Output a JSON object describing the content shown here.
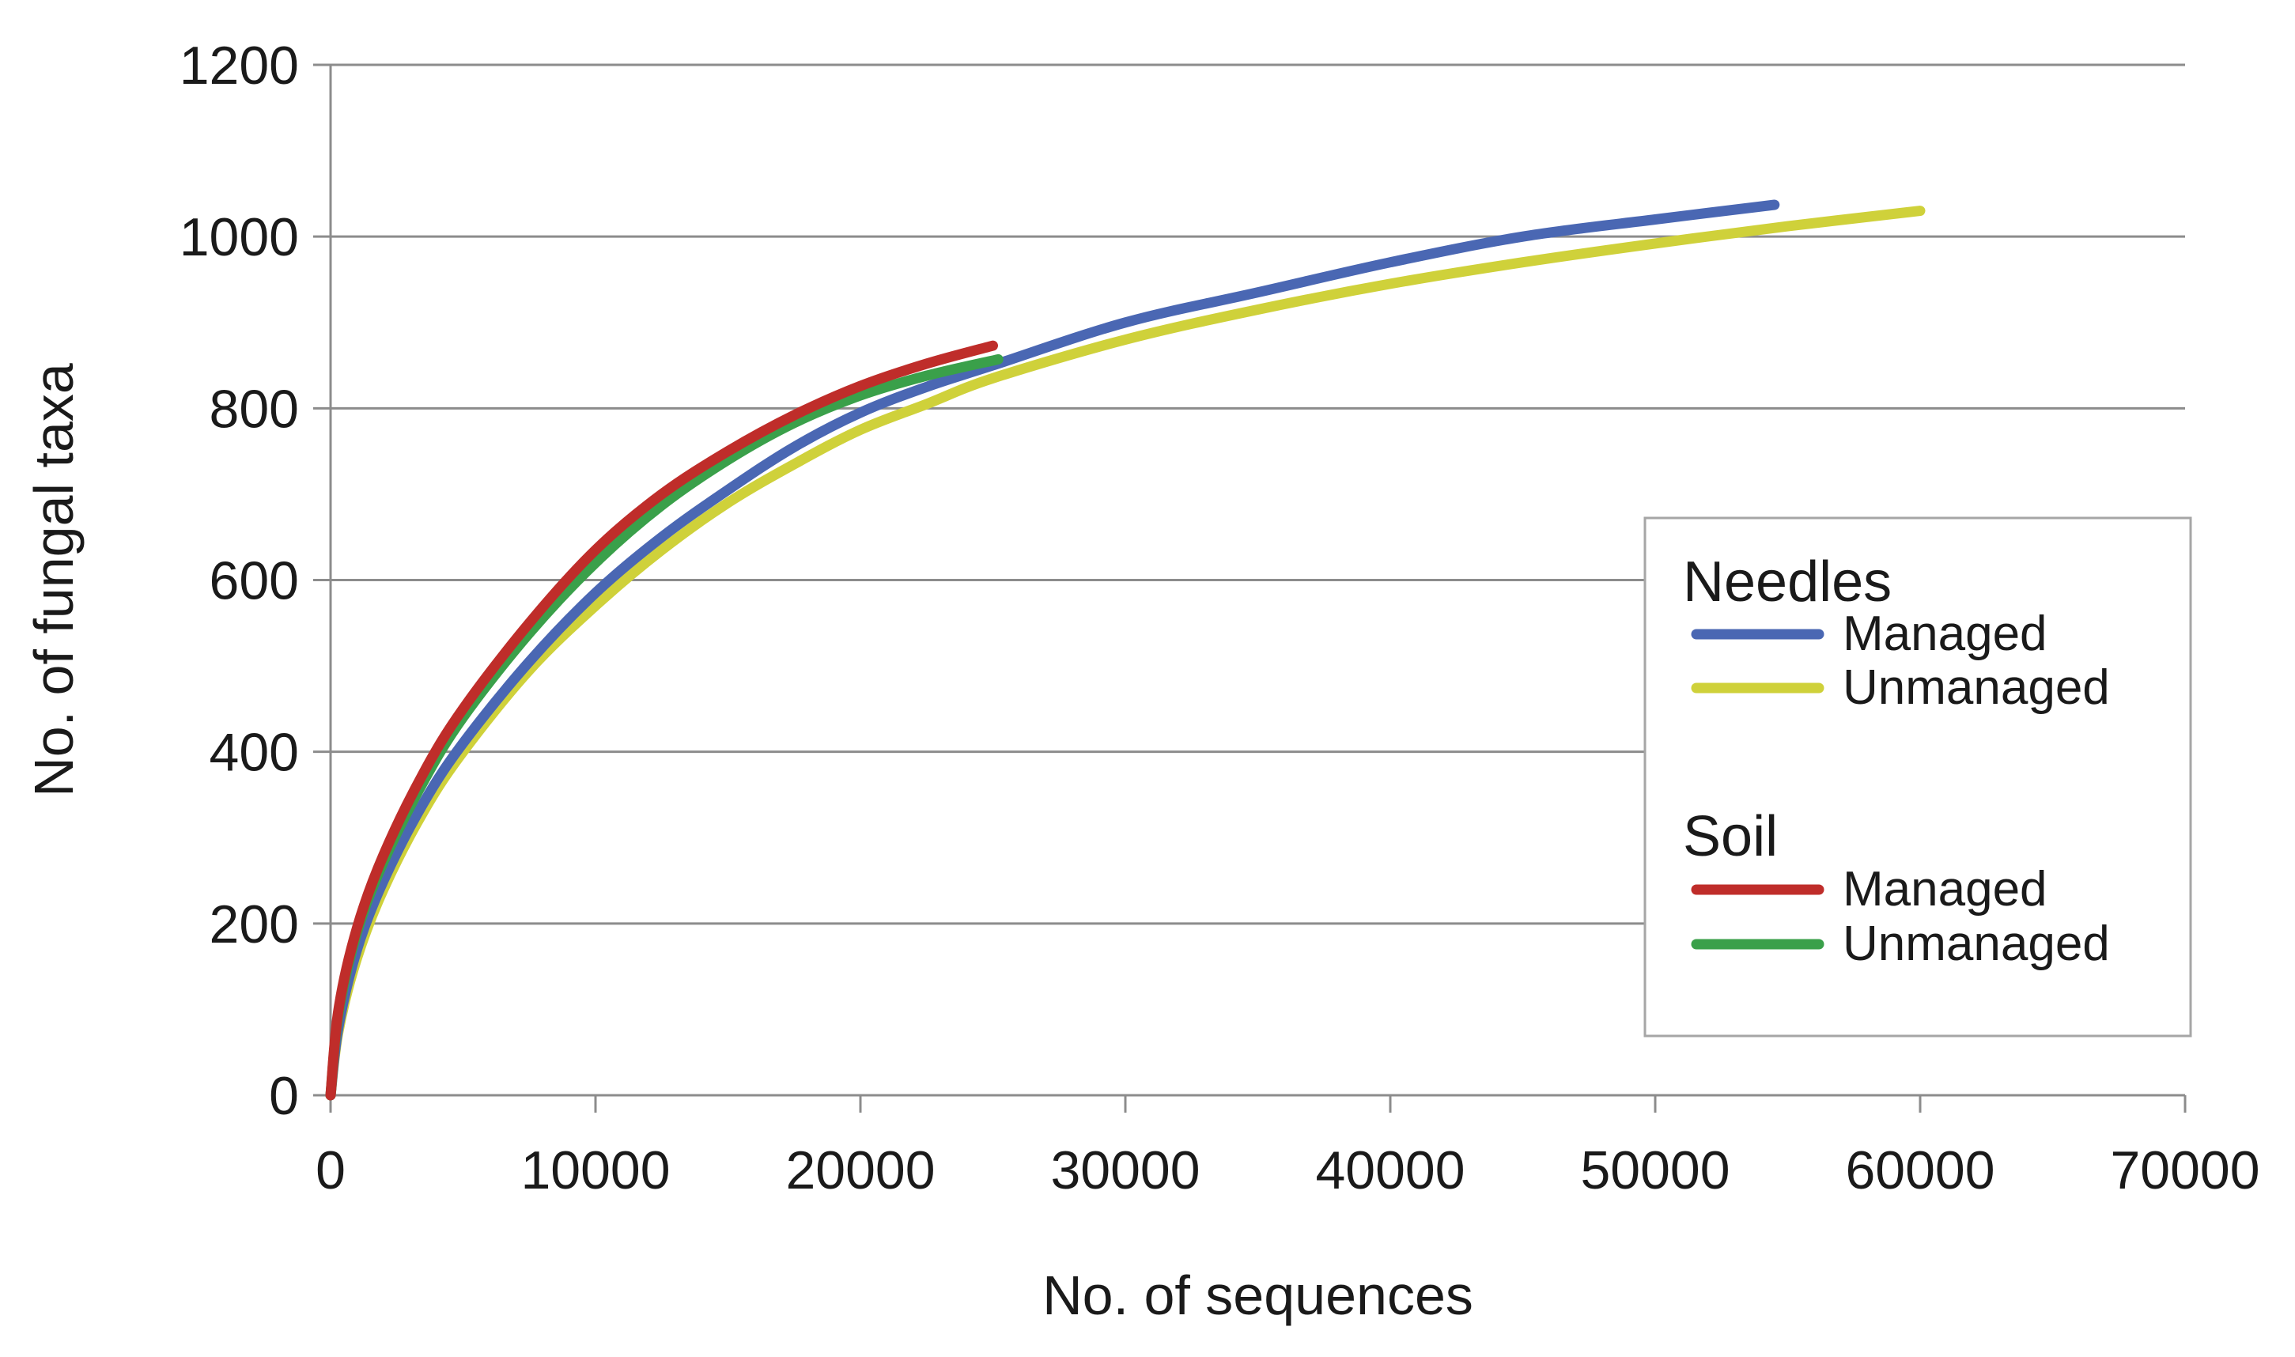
{
  "chart_data": {
    "type": "line",
    "title": "",
    "xlabel": "No. of sequences",
    "ylabel": "No. of fungal taxa",
    "xlim": [
      0,
      70000
    ],
    "ylim": [
      0,
      1200
    ],
    "xticks": [
      0,
      10000,
      20000,
      30000,
      40000,
      50000,
      60000,
      70000
    ],
    "yticks": [
      0,
      200,
      400,
      600,
      800,
      1000,
      1200
    ],
    "grid": "horizontal",
    "legend_position": "right",
    "legend_groups": [
      {
        "title": "Needles",
        "entries": [
          {
            "series": 0,
            "label": "Managed"
          },
          {
            "series": 1,
            "label": "Unmanaged"
          }
        ]
      },
      {
        "title": "Soil",
        "entries": [
          {
            "series": 2,
            "label": "Managed"
          },
          {
            "series": 3,
            "label": "Unmanaged"
          }
        ]
      }
    ],
    "series": [
      {
        "name": "Needles Managed",
        "color": "#4a67b3",
        "x": [
          0,
          300,
          1000,
          2000,
          3500,
          5000,
          7500,
          10000,
          12500,
          15000,
          17500,
          20000,
          22500,
          25000,
          30000,
          35000,
          40000,
          45000,
          50000,
          54500
        ],
        "y": [
          0,
          80,
          170,
          250,
          340,
          410,
          505,
          585,
          650,
          705,
          755,
          795,
          825,
          850,
          900,
          935,
          970,
          1000,
          1020,
          1037
        ]
      },
      {
        "name": "Needles Unmanaged",
        "color": "#cfd13a",
        "x": [
          0,
          300,
          1000,
          2000,
          3500,
          5000,
          7500,
          10000,
          12500,
          15000,
          17500,
          20000,
          22500,
          25000,
          30000,
          35000,
          40000,
          45000,
          50000,
          55000,
          60000
        ],
        "y": [
          0,
          75,
          160,
          240,
          330,
          400,
          495,
          570,
          635,
          690,
          735,
          775,
          805,
          835,
          880,
          915,
          945,
          970,
          992,
          1012,
          1030
        ]
      },
      {
        "name": "Soil Managed",
        "color": "#bf2d2a",
        "x": [
          0,
          300,
          1000,
          2000,
          3500,
          5000,
          7500,
          10000,
          12500,
          15000,
          17500,
          20000,
          22500,
          25000
        ],
        "y": [
          0,
          100,
          195,
          280,
          375,
          450,
          550,
          635,
          700,
          750,
          792,
          826,
          852,
          873
        ]
      },
      {
        "name": "Soil Unmanaged",
        "color": "#3aa04a",
        "x": [
          0,
          300,
          1000,
          2000,
          3500,
          5000,
          7500,
          10000,
          12500,
          15000,
          17500,
          20000,
          22500,
          25200
        ],
        "y": [
          0,
          95,
          190,
          272,
          365,
          440,
          538,
          620,
          687,
          740,
          783,
          815,
          838,
          857
        ]
      }
    ]
  }
}
